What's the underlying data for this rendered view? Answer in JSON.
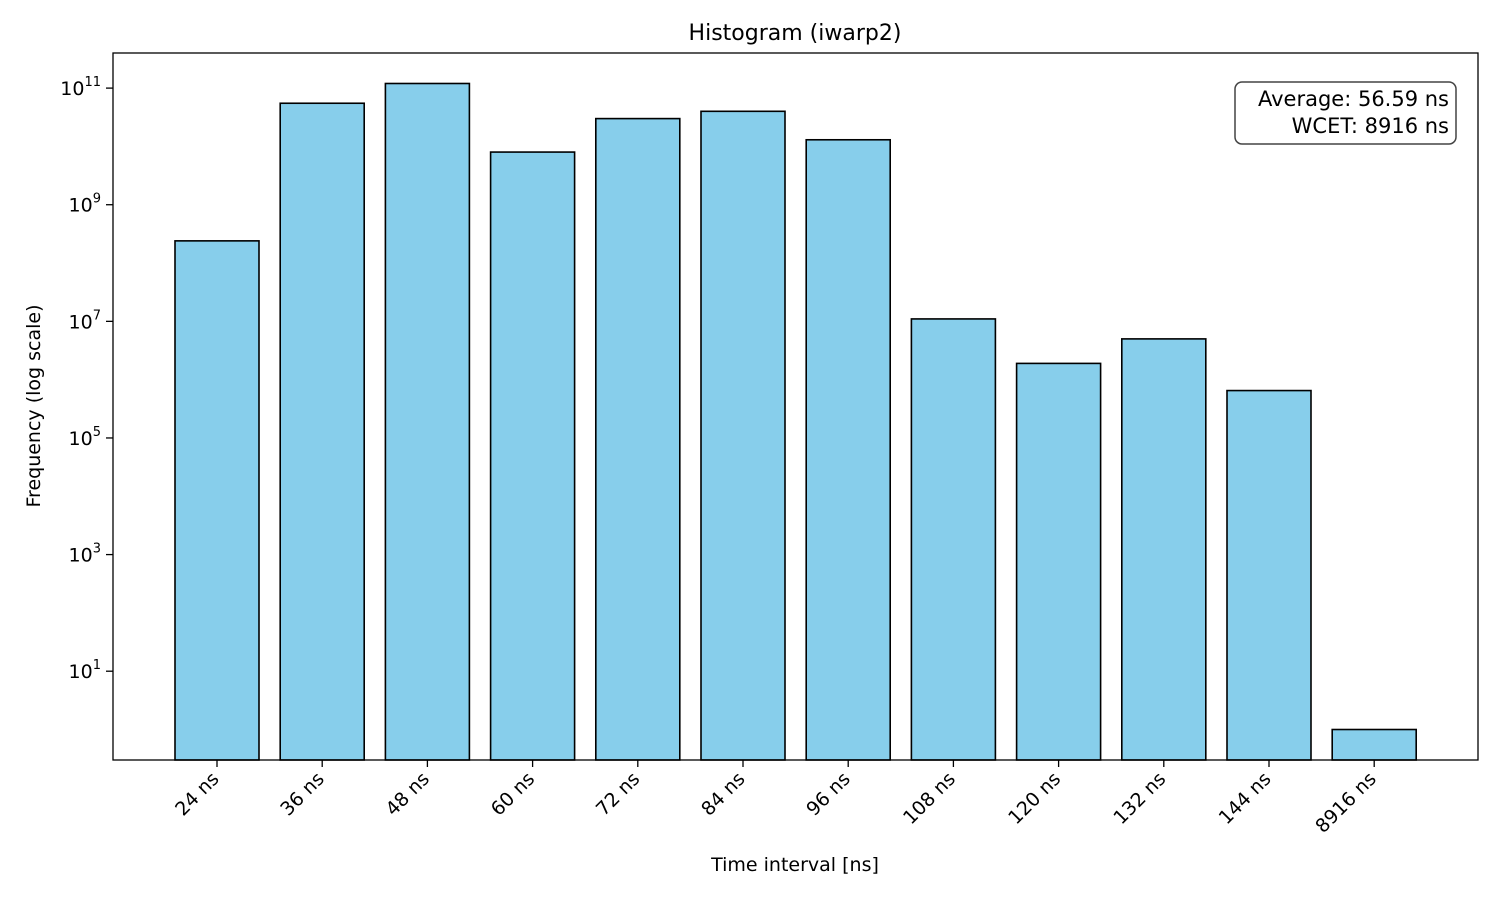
{
  "chart_data": {
    "type": "bar",
    "title": "Histogram (iwarp2)",
    "xlabel": "Time interval [ns]",
    "ylabel": "Frequency (log scale)",
    "yscale": "log",
    "ylim": [
      0.3,
      400000000000
    ],
    "yticks": [
      10,
      1000,
      100000,
      10000000,
      1000000000,
      100000000000
    ],
    "ytick_labels": [
      {
        "base": "10",
        "exp": "1"
      },
      {
        "base": "10",
        "exp": "3"
      },
      {
        "base": "10",
        "exp": "5"
      },
      {
        "base": "10",
        "exp": "7"
      },
      {
        "base": "10",
        "exp": "9"
      },
      {
        "base": "10",
        "exp": "11"
      }
    ],
    "categories": [
      "24 ns",
      "36 ns",
      "48 ns",
      "60 ns",
      "72 ns",
      "84 ns",
      "96 ns",
      "108 ns",
      "120 ns",
      "132 ns",
      "144 ns",
      "8916 ns"
    ],
    "values": [
      240000000,
      55000000000,
      120000000000,
      8000000000,
      30000000000,
      40000000000,
      13000000000,
      11000000,
      1900000,
      5000000,
      650000,
      1
    ],
    "bar_color": "#87ceeb",
    "edge_color": "#000000",
    "grid": false,
    "annotation": {
      "lines": [
        "Average: 56.59 ns",
        "WCET: 8916 ns"
      ],
      "placement": "top-right"
    }
  }
}
